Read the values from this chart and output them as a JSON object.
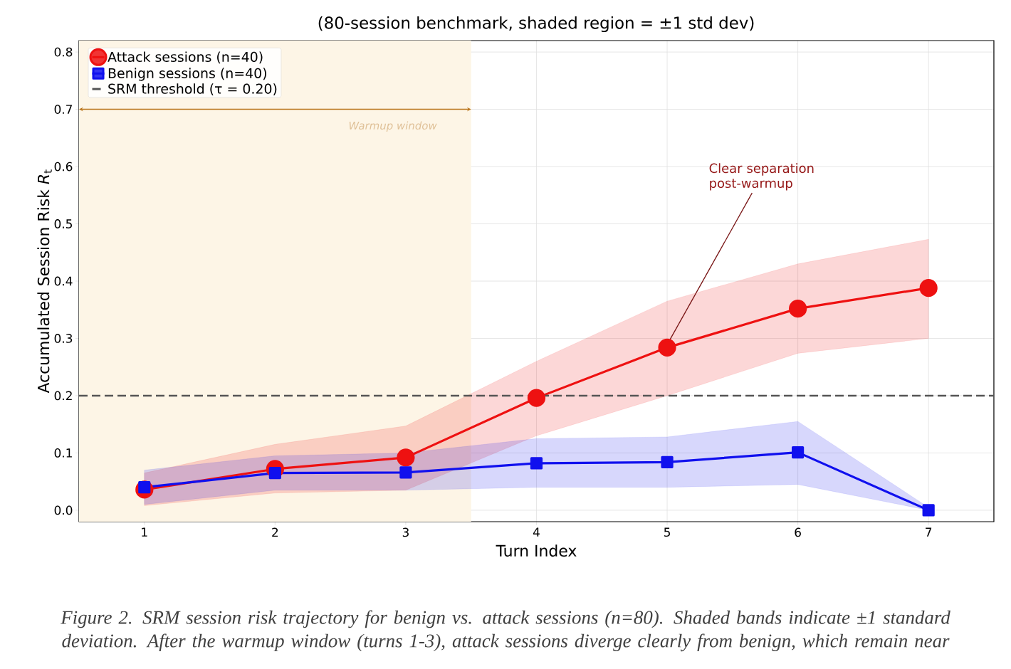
{
  "chart_data": {
    "type": "line",
    "subtitle": "(80-session benchmark, shaded region = ±1 std dev)",
    "xlabel": "Turn Index",
    "ylabel": "Accumulated Session Risk *R*$_{t}$",
    "x": [
      1,
      2,
      3,
      4,
      5,
      6,
      7
    ],
    "series": [
      {
        "name": "Attack sessions (n=40)",
        "color": "#ee1111",
        "marker": "circle",
        "values": [
          0.036,
          0.072,
          0.092,
          0.196,
          0.284,
          0.352,
          0.388
        ],
        "lower": [
          0.008,
          0.03,
          0.035,
          0.13,
          0.2,
          0.274,
          0.3
        ],
        "upper": [
          0.065,
          0.115,
          0.147,
          0.26,
          0.365,
          0.43,
          0.473
        ]
      },
      {
        "name": "Benign sessions (n=40)",
        "color": "#1010ee",
        "marker": "square",
        "values": [
          0.04,
          0.065,
          0.066,
          0.082,
          0.084,
          0.101,
          0.0
        ],
        "lower": [
          0.01,
          0.035,
          0.035,
          0.04,
          0.04,
          0.045,
          0.0
        ],
        "upper": [
          0.07,
          0.095,
          0.1,
          0.125,
          0.128,
          0.155,
          0.005
        ]
      }
    ],
    "ref_lines": [
      {
        "axis": "y",
        "value": 0.2,
        "label": "SRM threshold (τ = 0.20)",
        "color": "#555555",
        "line_style": "dashed"
      }
    ],
    "bands": [
      {
        "axis": "x",
        "from": 0.5,
        "to": 3.5,
        "label": "Warmup window",
        "color": "#fdf5e6"
      }
    ],
    "annotations": [
      {
        "text": "Clear separation post-warmup",
        "x": 5,
        "y": 0.284
      },
      "Figure 2. SRM session risk trajectory for benign vs. attack sessions (n=80). Shaded bands indicate ±1 standard deviation. After the warmup window (turns 1-3), attack sessions diverge clearly from benign, which remain near"
    ],
    "xlim": [
      0.5,
      7.5
    ],
    "ylim": [
      -0.02,
      0.82
    ],
    "xticks": [
      1,
      2,
      3,
      4,
      5,
      6,
      7
    ],
    "yticks": [
      {
        "value": 0,
        "label": "0.0"
      },
      {
        "value": 0.1,
        "label": "0.1"
      },
      {
        "value": 0.2,
        "label": "0.2"
      },
      {
        "value": 0.3,
        "label": "0.3"
      },
      {
        "value": 0.4,
        "label": "0.4"
      },
      {
        "value": 0.5,
        "label": "0.5"
      },
      {
        "value": 0.6,
        "label": "0.6"
      },
      {
        "value": 0.7,
        "label": "0.7"
      },
      {
        "value": 0.8,
        "label": "0.8"
      }
    ],
    "grid": true,
    "legend": "top left",
    "line_style": "solid"
  }
}
